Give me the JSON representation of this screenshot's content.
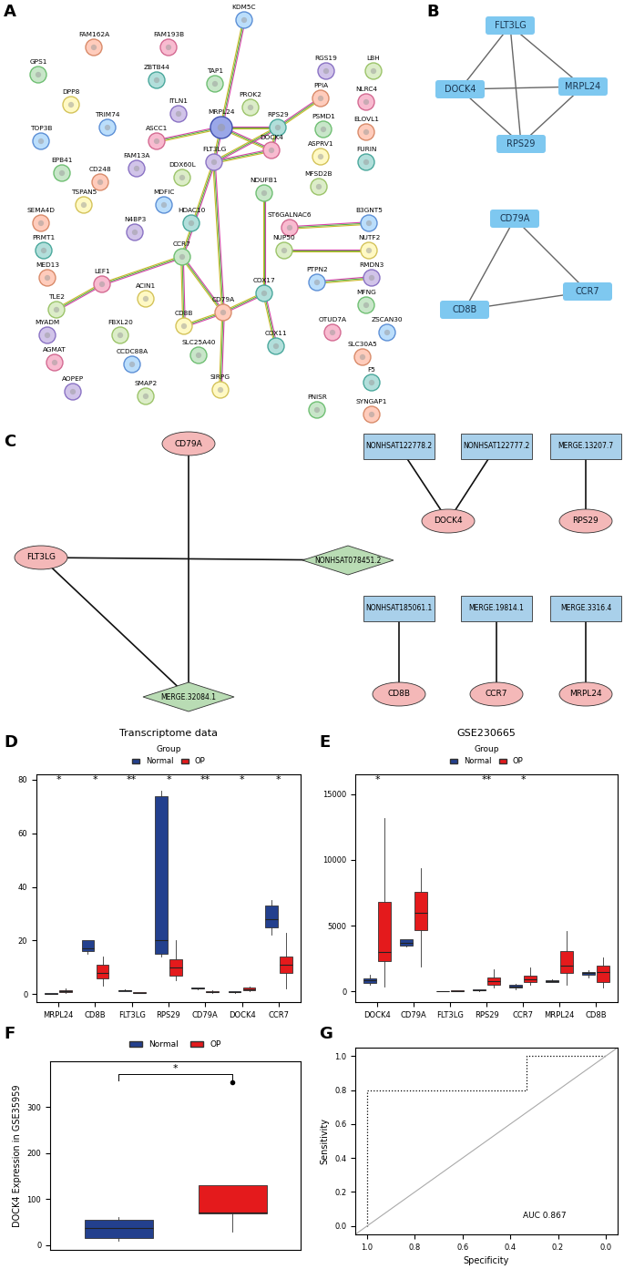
{
  "chart_data": [
    {
      "panel": "A",
      "type": "network",
      "nodes": [
        "GPS1",
        "FAM162A",
        "FAM193B",
        "KDM5C",
        "RGS19",
        "LBH",
        "DPP8",
        "ZBTB44",
        "TAP1",
        "PPIA",
        "NLRC4",
        "TRIM74",
        "ITLN1",
        "PROK2",
        "MRPL24",
        "RPS29",
        "PSMD1",
        "ELOVL1",
        "ASCC1",
        "TOP3B",
        "FAM13A",
        "DDX60L",
        "ASPRV1",
        "FURIN",
        "EPB41",
        "CD248",
        "DOCK4",
        "MDFIC",
        "FLT3LG",
        "MFSD2B",
        "TSPAN5",
        "HDAC10",
        "NDUFB1",
        "SEMA4D",
        "ST6GALNAC6",
        "B3GNT5",
        "N4BP3",
        "NUP50",
        "NUTF2",
        "PRMT1",
        "CCR7",
        "MED13",
        "LEF1",
        "PTPN2",
        "RMDN3",
        "TLE2",
        "ACIN1",
        "COX17",
        "MFNG",
        "CD79A",
        "OTUD7A",
        "ZSCAN30",
        "MYADM",
        "FBXL20",
        "CD8B",
        "COX11",
        "SLC25A40",
        "SLC30A5",
        "AGMAT",
        "CCDC88A",
        "AOPEP",
        "SMAP2",
        "SIRPG",
        "F5",
        "PNISR",
        "SYNGAP1"
      ],
      "edges": [
        [
          "KDM5C",
          "MRPL24"
        ],
        [
          "ASCC1",
          "MRPL24"
        ],
        [
          "MRPL24",
          "RPS29"
        ],
        [
          "MRPL24",
          "FLT3LG"
        ],
        [
          "MRPL24",
          "DOCK4"
        ],
        [
          "RPS29",
          "PPIA"
        ],
        [
          "RPS29",
          "FLT3LG"
        ],
        [
          "RPS29",
          "DOCK4"
        ],
        [
          "FLT3LG",
          "DOCK4"
        ],
        [
          "FLT3LG",
          "CCR7"
        ],
        [
          "FLT3LG",
          "CD79A"
        ],
        [
          "NDUFB1",
          "COX17"
        ],
        [
          "COX17",
          "CD79A"
        ],
        [
          "COX17",
          "COX11"
        ],
        [
          "CCR7",
          "LEF1"
        ],
        [
          "LEF1",
          "TLE2"
        ],
        [
          "CCR7",
          "CD8B"
        ],
        [
          "CCR7",
          "CD79A"
        ],
        [
          "CD79A",
          "CD8B"
        ],
        [
          "CD79A",
          "SIRPG"
        ],
        [
          "ST6GALNAC6",
          "B3GNT5"
        ],
        [
          "NUP50",
          "NUTF2"
        ],
        [
          "PTPN2",
          "RMDN3"
        ]
      ]
    },
    {
      "panel": "B",
      "type": "network",
      "color": "#7ec8f0",
      "nodes": [
        "FLT3LG",
        "MRPL24",
        "DOCK4",
        "RPS29",
        "CD79A",
        "CD8B",
        "CCR7"
      ],
      "edges": [
        [
          "FLT3LG",
          "MRPL24"
        ],
        [
          "FLT3LG",
          "DOCK4"
        ],
        [
          "FLT3LG",
          "RPS29"
        ],
        [
          "DOCK4",
          "MRPL24"
        ],
        [
          "DOCK4",
          "RPS29"
        ],
        [
          "MRPL24",
          "RPS29"
        ],
        [
          "CD79A",
          "CD8B"
        ],
        [
          "CD79A",
          "CCR7"
        ],
        [
          "CD8B",
          "CCR7"
        ]
      ]
    },
    {
      "panel": "C",
      "type": "network",
      "nodes": [
        {
          "label": "CD79A",
          "marker": "ellipse",
          "color": "#f4b8b8"
        },
        {
          "label": "FLT3LG",
          "marker": "ellipse",
          "color": "#f4b8b8"
        },
        {
          "label": "NONHSAT078451.2",
          "marker": "diamond",
          "color": "#b9dcb4"
        },
        {
          "label": "MERGE.32084.1",
          "marker": "diamond",
          "color": "#b9dcb4"
        },
        {
          "label": "NONHSAT122778.2",
          "marker": "square",
          "color": "#a9d0ea"
        },
        {
          "label": "NONHSAT122777.2",
          "marker": "square",
          "color": "#a9d0ea"
        },
        {
          "label": "MERGE.13207.7",
          "marker": "square",
          "color": "#a9d0ea"
        },
        {
          "label": "DOCK4",
          "marker": "ellipse",
          "color": "#f4b8b8"
        },
        {
          "label": "RPS29",
          "marker": "ellipse",
          "color": "#f4b8b8"
        },
        {
          "label": "NONHSAT185061.1",
          "marker": "square",
          "color": "#a9d0ea"
        },
        {
          "label": "MERGE.19814.1",
          "marker": "square",
          "color": "#a9d0ea"
        },
        {
          "label": "MERGE.3316.4",
          "marker": "square",
          "color": "#a9d0ea"
        },
        {
          "label": "CD8B",
          "marker": "ellipse",
          "color": "#f4b8b8"
        },
        {
          "label": "CCR7",
          "marker": "ellipse",
          "color": "#f4b8b8"
        },
        {
          "label": "MRPL24",
          "marker": "ellipse",
          "color": "#f4b8b8"
        }
      ],
      "edges": [
        [
          "CD79A",
          "MERGE.32084.1"
        ],
        [
          "FLT3LG",
          "MERGE.32084.1"
        ],
        [
          "FLT3LG",
          "NONHSAT078451.2"
        ],
        [
          "NONHSAT122778.2",
          "DOCK4"
        ],
        [
          "NONHSAT122777.2",
          "DOCK4"
        ],
        [
          "MERGE.13207.7",
          "RPS29"
        ],
        [
          "NONHSAT185061.1",
          "CD8B"
        ],
        [
          "MERGE.19814.1",
          "CCR7"
        ],
        [
          "MERGE.3316.4",
          "MRPL24"
        ]
      ]
    },
    {
      "panel": "D",
      "type": "box",
      "title": "Transcriptome data",
      "legend_title": "Group",
      "legend": "upper center",
      "categories": [
        "MRPL24",
        "CD8B",
        "FLT3LG",
        "RPS29",
        "CD79A",
        "DOCK4",
        "CCR7"
      ],
      "significance": [
        "*",
        "*",
        "**",
        "*",
        "**",
        "*",
        "*"
      ],
      "series": [
        {
          "name": "Normal",
          "color": "#23408e",
          "values": [
            [
              0.1,
              0.15,
              0.2,
              0.25,
              0.3
            ],
            [
              15,
              16,
              17,
              20,
              20
            ],
            [
              1,
              1.2,
              1.4,
              1.5,
              1.6
            ],
            [
              14,
              15,
              20,
              74,
              76
            ],
            [
              1.8,
              2,
              2.2,
              2.5,
              2.6
            ],
            [
              0.5,
              0.7,
              0.9,
              1,
              1.1
            ],
            [
              22,
              25,
              28,
              33,
              35
            ]
          ]
        },
        {
          "name": "OP",
          "color": "#e41a1c",
          "values": [
            [
              0.5,
              0.8,
              1,
              1.5,
              2
            ],
            [
              3,
              6,
              8,
              11,
              14
            ],
            [
              0.3,
              0.4,
              0.5,
              0.6,
              0.7
            ],
            [
              5,
              7,
              10,
              13,
              20
            ],
            [
              0.5,
              0.7,
              0.9,
              1.2,
              1.5
            ],
            [
              1,
              1.4,
              1.8,
              2.3,
              2.8
            ],
            [
              2,
              8,
              11,
              14,
              23
            ]
          ]
        }
      ],
      "ylim": [
        -3,
        82
      ],
      "yticks": [
        0,
        20,
        40,
        60,
        80
      ]
    },
    {
      "panel": "E",
      "type": "box",
      "title": "GSE230665",
      "legend_title": "Group",
      "legend": "upper center",
      "categories": [
        "DOCK4",
        "CD79A",
        "FLT3LG",
        "RPS29",
        "CCR7",
        "MRPL24",
        "CD8B"
      ],
      "significance": [
        "*",
        null,
        null,
        "**",
        "*",
        null,
        null
      ],
      "series": [
        {
          "name": "Normal",
          "color": "#23408e",
          "values": [
            [
              500,
              650,
              850,
              1000,
              1300
            ],
            [
              3400,
              3500,
              3700,
              4000,
              4000
            ],
            [
              40,
              45,
              50,
              55,
              60
            ],
            [
              50,
              80,
              120,
              150,
              200
            ],
            [
              200,
              300,
              350,
              500,
              600
            ],
            [
              700,
              750,
              800,
              850,
              900
            ],
            [
              1100,
              1300,
              1400,
              1500,
              1600
            ]
          ]
        },
        {
          "name": "OP",
          "color": "#e41a1c",
          "values": [
            [
              400,
              2300,
              3000,
              6800,
              13200
            ],
            [
              1900,
              4700,
              6000,
              7600,
              9400
            ],
            [
              40,
              50,
              60,
              70,
              80
            ],
            [
              300,
              500,
              800,
              1100,
              1700
            ],
            [
              500,
              700,
              900,
              1200,
              1800
            ],
            [
              500,
              1400,
              2000,
              3100,
              4600
            ],
            [
              300,
              700,
              1500,
              2000,
              2600
            ]
          ]
        }
      ],
      "ylim": [
        -800,
        16500
      ],
      "yticks": [
        0,
        5000,
        10000,
        15000
      ]
    },
    {
      "panel": "F",
      "type": "box",
      "ylabel": "DOCK4 Expression in GSE35959",
      "legend": "upper center",
      "significance": "*",
      "tick_labels": "y",
      "series": [
        {
          "name": "Normal",
          "color": "#23408e",
          "values": [
            10,
            15,
            38,
            55,
            62
          ],
          "outliers": []
        },
        {
          "name": "OP",
          "color": "#e41a1c",
          "values": [
            30,
            70,
            72,
            130,
            130
          ],
          "outliers": [
            355
          ]
        }
      ],
      "ylim": [
        -10,
        400
      ],
      "yticks": [
        0,
        100,
        200,
        300
      ]
    },
    {
      "panel": "G",
      "type": "line",
      "xlabel": "Specificity",
      "ylabel": "Sensitivity",
      "annotation": "AUC 0.867",
      "x": [
        1.0,
        1.0,
        0.333,
        0.333,
        0.0
      ],
      "y": [
        0.0,
        0.8,
        0.8,
        1.0,
        1.0
      ],
      "color": "#000000",
      "line_style": "dotted",
      "xlim": [
        1.05,
        -0.05
      ],
      "xticks": [
        1.0,
        0.8,
        0.6,
        0.4,
        0.2,
        0.0
      ],
      "ylim": [
        -0.05,
        1.05
      ],
      "yticks": [
        0.0,
        0.2,
        0.4,
        0.6,
        0.8,
        1.0
      ]
    }
  ]
}
